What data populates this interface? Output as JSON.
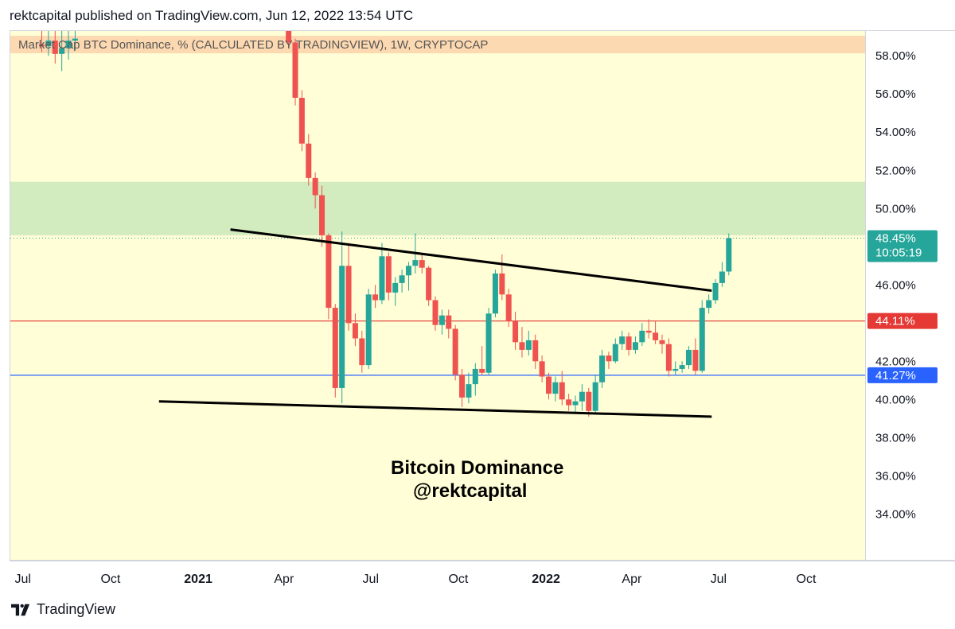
{
  "header": {
    "published": "rektcapital published on TradingView.com, Jun 12, 2022 13:54 UTC"
  },
  "footer": {
    "brand": "TradingView",
    "logo_icon": "tradingview-logo-icon"
  },
  "colors": {
    "background": "#fffed6",
    "resistance_zone": "#d3ecbf",
    "header_band": "#fdd9b1",
    "bull": "#26a69a",
    "bear": "#ef5350",
    "red_line": "#e53935",
    "blue_line": "#2962ff",
    "trendline": "#000000"
  },
  "chart_data": {
    "type": "candlestick",
    "title": "Market Cap BTC Dominance, % (CALCULATED BY TRADINGVIEW), 1W, CRYPTOCAP",
    "watermark": [
      "Bitcoin Dominance",
      "@rektcapital"
    ],
    "y_axis": {
      "ylim": [
        31.6,
        59.3
      ],
      "tick_labels": [
        "58.00%",
        "56.00%",
        "54.00%",
        "52.00%",
        "50.00%",
        "46.00%",
        "42.00%",
        "40.00%",
        "38.00%",
        "36.00%",
        "34.00%"
      ],
      "tick_values": [
        58,
        56,
        54,
        52,
        50,
        46,
        42,
        40,
        38,
        36,
        34
      ]
    },
    "x_axis": {
      "range": [
        "2020-06-17",
        "2022-12-01"
      ],
      "ticks": [
        {
          "label": "Jul",
          "date": "2020-07-01",
          "bold": false
        },
        {
          "label": "Oct",
          "date": "2020-10-01",
          "bold": false
        },
        {
          "label": "2021",
          "date": "2021-01-01",
          "bold": true
        },
        {
          "label": "Apr",
          "date": "2021-04-01",
          "bold": false
        },
        {
          "label": "Jul",
          "date": "2021-07-01",
          "bold": false
        },
        {
          "label": "Oct",
          "date": "2021-10-01",
          "bold": false
        },
        {
          "label": "2022",
          "date": "2022-01-01",
          "bold": true
        },
        {
          "label": "Apr",
          "date": "2022-04-01",
          "bold": false
        },
        {
          "label": "Jul",
          "date": "2022-07-01",
          "bold": false
        },
        {
          "label": "Oct",
          "date": "2022-10-01",
          "bold": false
        }
      ]
    },
    "zones": [
      {
        "name": "resistance-zone",
        "y_from": 48.6,
        "y_to": 51.4
      }
    ],
    "horizontal_lines": [
      {
        "name": "red-support-line",
        "value": 44.11,
        "label": "44.11%",
        "color": "#e53935"
      },
      {
        "name": "blue-support-line",
        "value": 41.27,
        "label": "41.27%",
        "color": "#2962ff"
      }
    ],
    "current_price": {
      "value": 48.45,
      "label": "48.45%",
      "countdown": "10:05:19"
    },
    "trendlines": [
      {
        "name": "upper-trendline",
        "from": {
          "date": "2021-02-03",
          "value": 48.9
        },
        "to": {
          "date": "2022-06-23",
          "value": 45.7
        }
      },
      {
        "name": "lower-trendline",
        "from": {
          "date": "2020-11-20",
          "value": 39.9
        },
        "to": {
          "date": "2022-06-23",
          "value": 39.1
        }
      }
    ],
    "candles": [
      {
        "date": "2020-07-20",
        "open": 58.6,
        "high": 59.3,
        "low": 58.2,
        "close": 58.5
      },
      {
        "date": "2020-07-27",
        "open": 58.5,
        "high": 59.3,
        "low": 58.0,
        "close": 58.8
      },
      {
        "date": "2020-08-03",
        "open": 58.8,
        "high": 59.3,
        "low": 57.6,
        "close": 58.1
      },
      {
        "date": "2020-08-10",
        "open": 58.1,
        "high": 59.3,
        "low": 57.2,
        "close": 58.4
      },
      {
        "date": "2020-08-17",
        "open": 58.4,
        "high": 59.3,
        "low": 57.8,
        "close": 58.8
      },
      {
        "date": "2020-08-24",
        "open": 58.8,
        "high": 59.3,
        "low": 58.3,
        "close": 58.9
      },
      {
        "date": "2021-04-05",
        "open": 59.3,
        "high": 59.3,
        "low": 58.5,
        "close": 58.7
      },
      {
        "date": "2021-04-12",
        "open": 58.7,
        "high": 58.9,
        "low": 55.4,
        "close": 55.8
      },
      {
        "date": "2021-04-19",
        "open": 55.8,
        "high": 56.2,
        "low": 53.0,
        "close": 53.4
      },
      {
        "date": "2021-04-26",
        "open": 53.4,
        "high": 53.9,
        "low": 51.2,
        "close": 51.6
      },
      {
        "date": "2021-05-03",
        "open": 51.6,
        "high": 51.9,
        "low": 50.0,
        "close": 50.7
      },
      {
        "date": "2021-05-10",
        "open": 50.7,
        "high": 51.2,
        "low": 48.0,
        "close": 48.6
      },
      {
        "date": "2021-05-17",
        "open": 48.6,
        "high": 48.7,
        "low": 44.2,
        "close": 44.8
      },
      {
        "date": "2021-05-24",
        "open": 44.8,
        "high": 45.0,
        "low": 40.1,
        "close": 40.6
      },
      {
        "date": "2021-05-31",
        "open": 40.6,
        "high": 48.8,
        "low": 39.8,
        "close": 47.0
      },
      {
        "date": "2021-06-07",
        "open": 47.0,
        "high": 48.2,
        "low": 43.6,
        "close": 44.0
      },
      {
        "date": "2021-06-14",
        "open": 44.0,
        "high": 44.5,
        "low": 42.8,
        "close": 43.2
      },
      {
        "date": "2021-06-21",
        "open": 43.2,
        "high": 43.6,
        "low": 41.4,
        "close": 41.8
      },
      {
        "date": "2021-06-28",
        "open": 41.8,
        "high": 45.8,
        "low": 41.6,
        "close": 45.5
      },
      {
        "date": "2021-07-05",
        "open": 45.5,
        "high": 46.0,
        "low": 44.8,
        "close": 45.2
      },
      {
        "date": "2021-07-12",
        "open": 45.2,
        "high": 48.2,
        "low": 45.0,
        "close": 47.5
      },
      {
        "date": "2021-07-19",
        "open": 47.5,
        "high": 47.7,
        "low": 45.2,
        "close": 45.6
      },
      {
        "date": "2021-07-26",
        "open": 45.6,
        "high": 46.4,
        "low": 44.9,
        "close": 46.1
      },
      {
        "date": "2021-08-02",
        "open": 46.1,
        "high": 46.8,
        "low": 45.6,
        "close": 46.5
      },
      {
        "date": "2021-08-09",
        "open": 46.5,
        "high": 47.2,
        "low": 45.7,
        "close": 47.0
      },
      {
        "date": "2021-08-16",
        "open": 47.0,
        "high": 48.7,
        "low": 46.6,
        "close": 47.3
      },
      {
        "date": "2021-08-23",
        "open": 47.3,
        "high": 47.6,
        "low": 46.6,
        "close": 46.9
      },
      {
        "date": "2021-08-30",
        "open": 46.9,
        "high": 47.0,
        "low": 44.9,
        "close": 45.2
      },
      {
        "date": "2021-09-06",
        "open": 45.2,
        "high": 45.4,
        "low": 43.6,
        "close": 43.9
      },
      {
        "date": "2021-09-13",
        "open": 43.9,
        "high": 44.7,
        "low": 43.4,
        "close": 44.4
      },
      {
        "date": "2021-09-20",
        "open": 44.4,
        "high": 44.7,
        "low": 43.2,
        "close": 43.7
      },
      {
        "date": "2021-09-27",
        "open": 43.7,
        "high": 43.9,
        "low": 41.0,
        "close": 41.3
      },
      {
        "date": "2021-10-04",
        "open": 41.3,
        "high": 41.6,
        "low": 39.6,
        "close": 40.1
      },
      {
        "date": "2021-10-11",
        "open": 40.1,
        "high": 41.4,
        "low": 39.8,
        "close": 40.8
      },
      {
        "date": "2021-10-18",
        "open": 40.8,
        "high": 41.9,
        "low": 40.2,
        "close": 41.6
      },
      {
        "date": "2021-10-25",
        "open": 41.6,
        "high": 42.8,
        "low": 41.3,
        "close": 41.4
      },
      {
        "date": "2021-11-01",
        "open": 41.4,
        "high": 44.8,
        "low": 41.3,
        "close": 44.5
      },
      {
        "date": "2021-11-08",
        "open": 44.5,
        "high": 46.8,
        "low": 44.3,
        "close": 46.6
      },
      {
        "date": "2021-11-15",
        "open": 46.6,
        "high": 47.6,
        "low": 45.2,
        "close": 45.5
      },
      {
        "date": "2021-11-22",
        "open": 45.5,
        "high": 45.8,
        "low": 43.8,
        "close": 44.1
      },
      {
        "date": "2021-11-29",
        "open": 44.1,
        "high": 44.6,
        "low": 42.6,
        "close": 43.0
      },
      {
        "date": "2021-12-06",
        "open": 43.0,
        "high": 43.8,
        "low": 42.2,
        "close": 42.6
      },
      {
        "date": "2021-12-13",
        "open": 42.6,
        "high": 43.6,
        "low": 42.3,
        "close": 43.1
      },
      {
        "date": "2021-12-20",
        "open": 43.1,
        "high": 43.4,
        "low": 41.6,
        "close": 42.0
      },
      {
        "date": "2021-12-27",
        "open": 42.0,
        "high": 42.3,
        "low": 40.9,
        "close": 41.2
      },
      {
        "date": "2022-01-03",
        "open": 41.2,
        "high": 41.4,
        "low": 40.0,
        "close": 40.3
      },
      {
        "date": "2022-01-10",
        "open": 40.3,
        "high": 41.2,
        "low": 39.9,
        "close": 40.9
      },
      {
        "date": "2022-01-17",
        "open": 40.9,
        "high": 41.5,
        "low": 39.7,
        "close": 40.0
      },
      {
        "date": "2022-01-24",
        "open": 40.0,
        "high": 40.3,
        "low": 39.4,
        "close": 39.7
      },
      {
        "date": "2022-01-31",
        "open": 39.7,
        "high": 40.2,
        "low": 39.3,
        "close": 39.9
      },
      {
        "date": "2022-02-07",
        "open": 39.9,
        "high": 40.8,
        "low": 39.4,
        "close": 40.4
      },
      {
        "date": "2022-02-14",
        "open": 40.4,
        "high": 40.6,
        "low": 39.1,
        "close": 39.4
      },
      {
        "date": "2022-02-21",
        "open": 39.4,
        "high": 41.3,
        "low": 39.3,
        "close": 40.9
      },
      {
        "date": "2022-02-28",
        "open": 40.9,
        "high": 42.6,
        "low": 40.6,
        "close": 42.3
      },
      {
        "date": "2022-03-07",
        "open": 42.3,
        "high": 42.5,
        "low": 41.6,
        "close": 42.0
      },
      {
        "date": "2022-03-14",
        "open": 42.0,
        "high": 43.2,
        "low": 41.9,
        "close": 42.9
      },
      {
        "date": "2022-03-21",
        "open": 42.9,
        "high": 43.6,
        "low": 42.6,
        "close": 43.3
      },
      {
        "date": "2022-03-28",
        "open": 43.3,
        "high": 43.5,
        "low": 42.3,
        "close": 42.6
      },
      {
        "date": "2022-04-04",
        "open": 42.6,
        "high": 43.3,
        "low": 42.4,
        "close": 43.0
      },
      {
        "date": "2022-04-11",
        "open": 43.0,
        "high": 44.0,
        "low": 42.8,
        "close": 43.6
      },
      {
        "date": "2022-04-18",
        "open": 43.6,
        "high": 44.2,
        "low": 43.2,
        "close": 43.5
      },
      {
        "date": "2022-04-25",
        "open": 43.5,
        "high": 44.1,
        "low": 42.9,
        "close": 43.1
      },
      {
        "date": "2022-05-02",
        "open": 43.1,
        "high": 43.4,
        "low": 42.4,
        "close": 42.9
      },
      {
        "date": "2022-05-09",
        "open": 42.9,
        "high": 43.2,
        "low": 41.2,
        "close": 41.5
      },
      {
        "date": "2022-05-16",
        "open": 41.5,
        "high": 42.0,
        "low": 41.3,
        "close": 41.6
      },
      {
        "date": "2022-05-23",
        "open": 41.6,
        "high": 42.0,
        "low": 41.4,
        "close": 41.8
      },
      {
        "date": "2022-05-30",
        "open": 41.8,
        "high": 42.8,
        "low": 41.6,
        "close": 42.6
      },
      {
        "date": "2022-06-06",
        "open": 42.6,
        "high": 43.2,
        "low": 41.3,
        "close": 41.5
      },
      {
        "date": "2022-06-13",
        "open": 41.5,
        "high": 45.2,
        "low": 41.4,
        "close": 44.8
      },
      {
        "date": "2022-06-20",
        "open": 44.8,
        "high": 45.5,
        "low": 44.5,
        "close": 45.2
      },
      {
        "date": "2022-06-27",
        "open": 45.2,
        "high": 46.3,
        "low": 45.0,
        "close": 46.1
      },
      {
        "date": "2022-07-04",
        "open": 46.1,
        "high": 47.2,
        "low": 45.9,
        "close": 46.7
      },
      {
        "date": "2022-07-11",
        "open": 46.7,
        "high": 48.7,
        "low": 46.5,
        "close": 48.45
      }
    ]
  }
}
